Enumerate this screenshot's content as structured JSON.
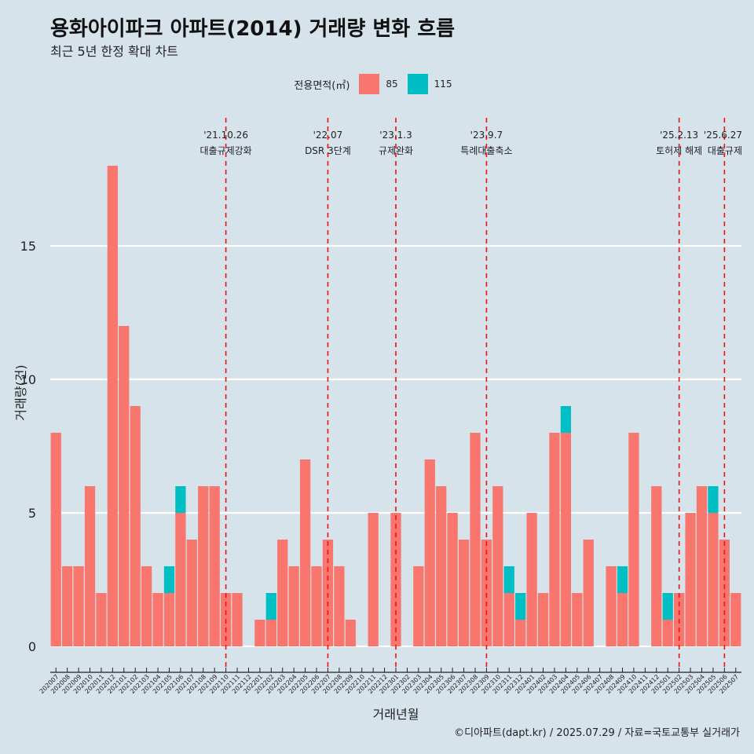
{
  "title": "용화아이파크 아파트(2014) 거래량 변화 흐름",
  "subtitle": "최근 5년 한정 확대 차트",
  "caption": "©디아파트(dapt.kr) / 2025.07.29 / 자료=국토교통부 실거래가",
  "legend": {
    "title": "전용면적(㎡)",
    "items": [
      {
        "label": "85",
        "color": "#f8766d"
      },
      {
        "label": "115",
        "color": "#00bfc4"
      }
    ]
  },
  "chart_data": {
    "type": "bar",
    "stacked": true,
    "xlabel": "거래년월",
    "ylabel": "거래량(건)",
    "ylim": [
      0,
      18
    ],
    "yticks": [
      0,
      5,
      10,
      15
    ],
    "grid": true,
    "legend_position": "top",
    "categories": [
      "202007",
      "202008",
      "202009",
      "202010",
      "202011",
      "202012",
      "202101",
      "202102",
      "202103",
      "202104",
      "202105",
      "202106",
      "202107",
      "202108",
      "202109",
      "202110",
      "202111",
      "202112",
      "202201",
      "202202",
      "202203",
      "202204",
      "202205",
      "202206",
      "202207",
      "202208",
      "202209",
      "202210",
      "202211",
      "202212",
      "202301",
      "202302",
      "202303",
      "202304",
      "202305",
      "202306",
      "202307",
      "202308",
      "202309",
      "202310",
      "202311",
      "202312",
      "202401",
      "202402",
      "202403",
      "202404",
      "202405",
      "202406",
      "202407",
      "202408",
      "202409",
      "202410",
      "202411",
      "202412",
      "202501",
      "202502",
      "202503",
      "202504",
      "202505",
      "202506",
      "202507"
    ],
    "series": [
      {
        "name": "85",
        "color": "#f8766d",
        "values": [
          8,
          3,
          3,
          6,
          2,
          18,
          12,
          9,
          3,
          2,
          2,
          5,
          4,
          6,
          6,
          2,
          2,
          0,
          1,
          1,
          4,
          3,
          7,
          3,
          4,
          3,
          1,
          0,
          5,
          0,
          5,
          0,
          3,
          7,
          6,
          5,
          4,
          8,
          4,
          6,
          2,
          1,
          5,
          2,
          8,
          8,
          2,
          4,
          0,
          3,
          2,
          8,
          0,
          6,
          1,
          2,
          5,
          6,
          5,
          4,
          2
        ]
      },
      {
        "name": "115",
        "color": "#00bfc4",
        "values": [
          0,
          0,
          0,
          0,
          0,
          0,
          0,
          0,
          0,
          0,
          1,
          1,
          0,
          0,
          0,
          0,
          0,
          0,
          0,
          1,
          0,
          0,
          0,
          0,
          0,
          0,
          0,
          0,
          0,
          0,
          0,
          0,
          0,
          0,
          0,
          0,
          0,
          0,
          0,
          0,
          1,
          1,
          0,
          0,
          0,
          1,
          0,
          0,
          0,
          0,
          1,
          0,
          0,
          0,
          1,
          0,
          0,
          0,
          1,
          0,
          0
        ]
      }
    ],
    "events": [
      {
        "date": "'21.10.26",
        "label": "대출규제강화",
        "category": "202110"
      },
      {
        "date": "'22.07",
        "label": "DSR 3단계",
        "category": "202207"
      },
      {
        "date": "'23.1.3",
        "label": "규제완화",
        "category": "202301"
      },
      {
        "date": "'23.9.7",
        "label": "특례대출축소",
        "category": "202309"
      },
      {
        "date": "'25.2.13",
        "label": "토허제 해제",
        "category": "202502"
      },
      {
        "date": "'25.6.27",
        "label": "대출규제",
        "category": "202506"
      }
    ]
  }
}
